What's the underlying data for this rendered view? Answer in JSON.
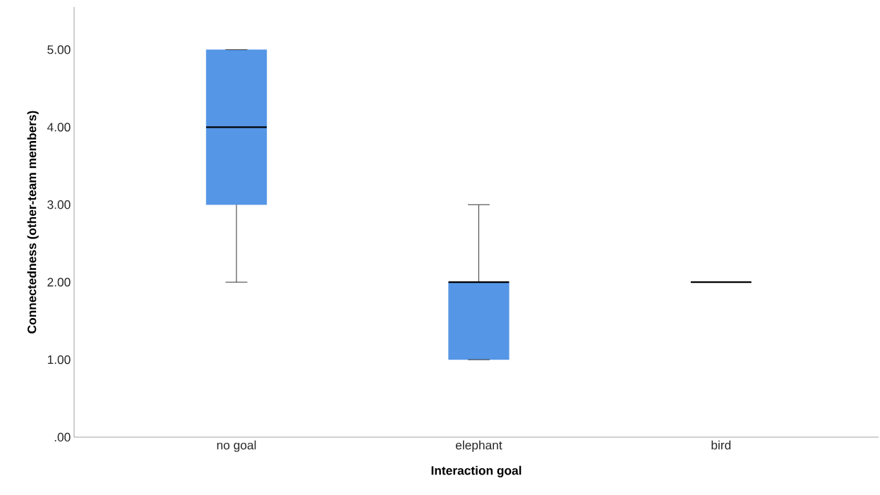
{
  "chart_data": {
    "type": "box",
    "xlabel": "Interaction goal",
    "ylabel": "Connectedness (other-team members)",
    "categories": [
      "no goal",
      "elephant",
      "bird"
    ],
    "boxes": [
      {
        "low": 2,
        "q1": 3,
        "median": 4,
        "q3": 5,
        "high": 5
      },
      {
        "low": 1,
        "q1": 1,
        "median": 2,
        "q3": 2,
        "high": 3
      },
      {
        "low": 2,
        "q1": 2,
        "median": 2,
        "q3": 2,
        "high": 2
      }
    ],
    "color": "#5596e6",
    "ylim": [
      0,
      5.55
    ],
    "yticks": [
      {
        "value": 0,
        "label": ".00"
      },
      {
        "value": 1,
        "label": "1.00"
      },
      {
        "value": 2,
        "label": "2.00"
      },
      {
        "value": 3,
        "label": "3.00"
      },
      {
        "value": 4,
        "label": "4.00"
      },
      {
        "value": 5,
        "label": "5.00"
      }
    ]
  }
}
